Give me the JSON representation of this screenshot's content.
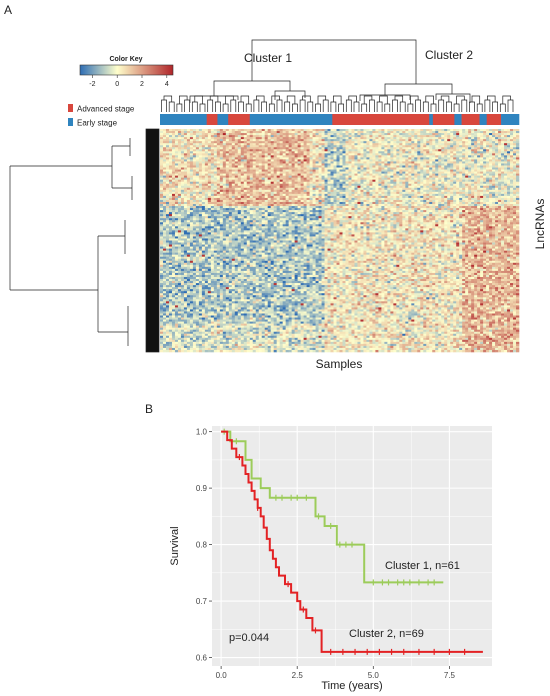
{
  "panels": {
    "a": "A",
    "b": "B"
  },
  "chart_data": [
    {
      "type": "heatmap",
      "color_key": {
        "title": "Color Key",
        "ticks": [
          "-2",
          "0",
          "2",
          "4"
        ],
        "range": [
          -3,
          4.5
        ],
        "colors": [
          "#2e6db4",
          "#ffffcc",
          "#b0252a"
        ]
      },
      "legend": [
        {
          "label": "Advanced stage",
          "color": "#d8473d"
        },
        {
          "label": "Early stage",
          "color": "#2f84bf"
        }
      ],
      "clusters": [
        "Cluster 1",
        "Cluster 2"
      ],
      "xlabel": "Samples",
      "ylabel": "LncRNAs",
      "sample_stage_pattern": [
        {
          "stage": "Early stage",
          "fraction": 0.13
        },
        {
          "stage": "Advanced stage",
          "fraction": 0.03
        },
        {
          "stage": "Early stage",
          "fraction": 0.03
        },
        {
          "stage": "Advanced stage",
          "fraction": 0.06
        },
        {
          "stage": "Early stage",
          "fraction": 0.23
        },
        {
          "stage": "Advanced stage",
          "fraction": 0.27
        },
        {
          "stage": "Early stage",
          "fraction": 0.01
        },
        {
          "stage": "Advanced stage",
          "fraction": 0.06
        },
        {
          "stage": "Early stage",
          "fraction": 0.02
        },
        {
          "stage": "Advanced stage",
          "fraction": 0.05
        },
        {
          "stage": "Early stage",
          "fraction": 0.02
        },
        {
          "stage": "Advanced stage",
          "fraction": 0.04
        },
        {
          "stage": "Early stage",
          "fraction": 0.05
        }
      ]
    },
    {
      "type": "line",
      "xlabel": "Time (years)",
      "ylabel": "Survival",
      "xlim": [
        -0.3,
        8.9
      ],
      "ylim": [
        0.585,
        1.01
      ],
      "xticks": [
        0.0,
        2.5,
        5.0,
        7.5
      ],
      "xtick_labels": [
        "0.0",
        "2.5",
        "5.0",
        "7.5"
      ],
      "yticks": [
        0.6,
        0.7,
        0.8,
        0.9,
        1.0
      ],
      "ytick_labels": [
        "0.6",
        "0.7",
        "0.8",
        "0.9",
        "1.0"
      ],
      "grid": true,
      "annotation": "p=0.044",
      "series": [
        {
          "name": "Cluster 1, n=61",
          "color": "#9ccc5a",
          "steps": [
            [
              0.0,
              1.0
            ],
            [
              0.3,
              0.983
            ],
            [
              0.8,
              0.95
            ],
            [
              1.0,
              0.917
            ],
            [
              1.3,
              0.9
            ],
            [
              1.6,
              0.883
            ],
            [
              3.1,
              0.85
            ],
            [
              3.4,
              0.833
            ],
            [
              3.8,
              0.8
            ],
            [
              4.7,
              0.733
            ],
            [
              7.3,
              0.733
            ]
          ],
          "censor": [
            0.1,
            0.5,
            1.8,
            2.0,
            2.3,
            2.5,
            2.8,
            3.2,
            3.6,
            3.9,
            4.1,
            4.3,
            5.0,
            5.3,
            5.5,
            5.8,
            6.0,
            6.2,
            6.5,
            6.8,
            7.0
          ]
        },
        {
          "name": "Cluster 2, n=69",
          "color": "#e32224",
          "steps": [
            [
              0.0,
              1.0
            ],
            [
              0.2,
              0.985
            ],
            [
              0.35,
              0.97
            ],
            [
              0.5,
              0.955
            ],
            [
              0.7,
              0.94
            ],
            [
              0.8,
              0.925
            ],
            [
              0.9,
              0.91
            ],
            [
              1.0,
              0.895
            ],
            [
              1.1,
              0.88
            ],
            [
              1.2,
              0.865
            ],
            [
              1.3,
              0.85
            ],
            [
              1.4,
              0.83
            ],
            [
              1.5,
              0.81
            ],
            [
              1.6,
              0.79
            ],
            [
              1.7,
              0.775
            ],
            [
              1.8,
              0.76
            ],
            [
              1.9,
              0.745
            ],
            [
              2.1,
              0.73
            ],
            [
              2.3,
              0.715
            ],
            [
              2.5,
              0.7
            ],
            [
              2.6,
              0.685
            ],
            [
              2.8,
              0.67
            ],
            [
              3.0,
              0.648
            ],
            [
              3.3,
              0.61
            ],
            [
              8.6,
              0.61
            ]
          ],
          "censor": [
            0.6,
            1.2,
            2.2,
            2.7,
            3.1,
            3.6,
            4.0,
            4.4,
            4.8,
            5.2,
            5.6,
            6.0,
            6.5,
            7.0,
            7.5,
            8.0
          ]
        }
      ]
    }
  ]
}
